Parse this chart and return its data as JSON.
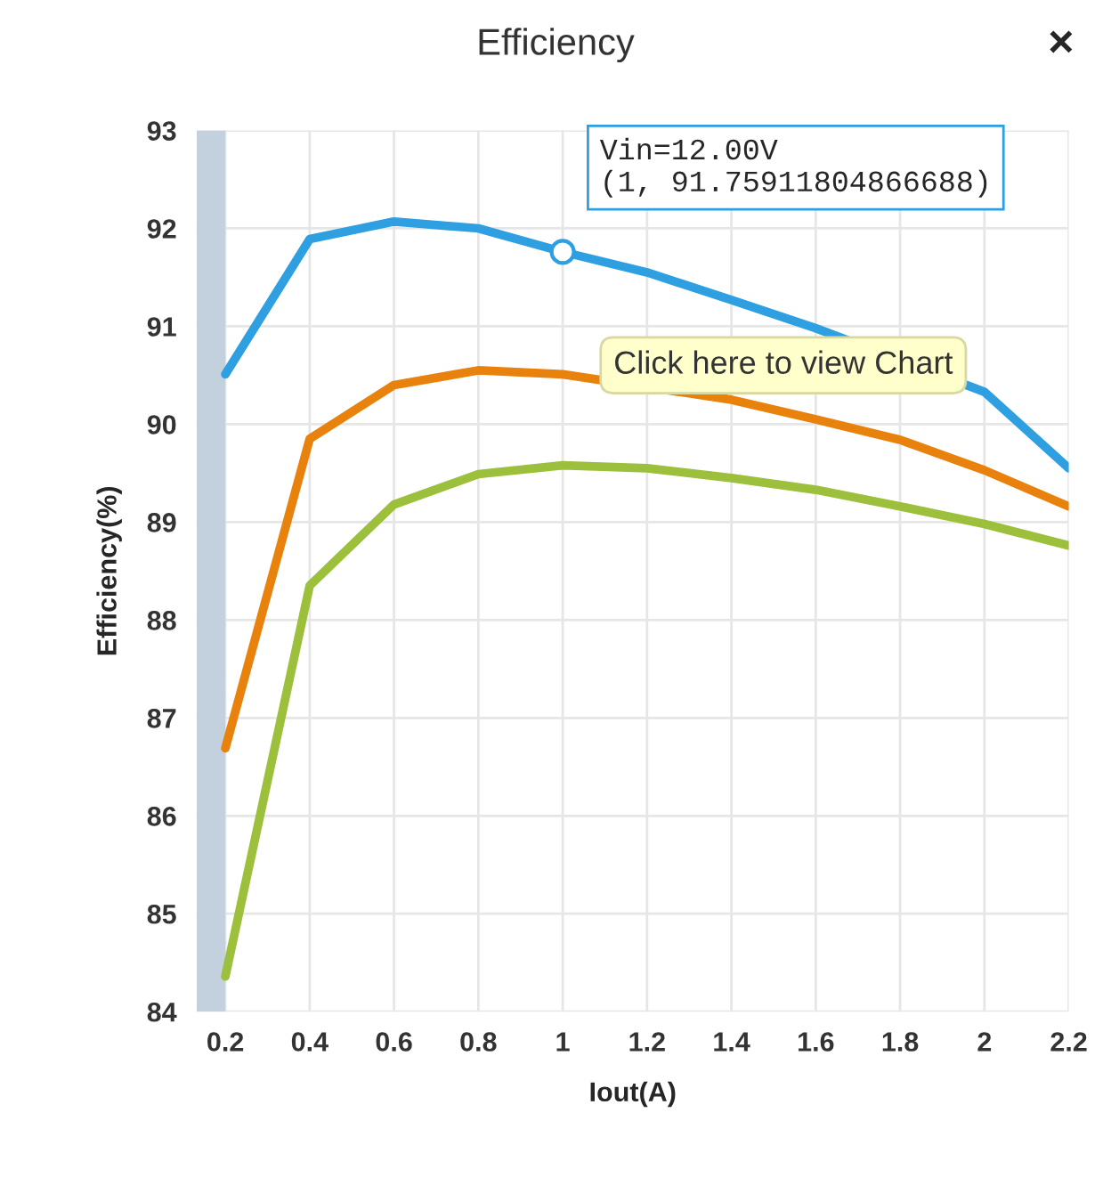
{
  "chart_data": {
    "type": "line",
    "title": "Efficiency",
    "xlabel": "Iout(A)",
    "ylabel": "Efficiency(%)",
    "x": [
      0.2,
      0.4,
      0.6,
      0.8,
      1.0,
      1.2,
      1.4,
      1.6,
      1.8,
      2.0,
      2.2
    ],
    "series": [
      {
        "color": "#2e9fe0",
        "values": [
          90.51,
          91.89,
          92.07,
          92.0,
          91.76,
          91.55,
          91.27,
          90.98,
          null,
          90.33,
          89.55
        ]
      },
      {
        "color": "#e8820c",
        "values": [
          86.69,
          89.85,
          90.4,
          90.55,
          90.51,
          null,
          90.25,
          90.05,
          89.84,
          89.53,
          89.16
        ]
      },
      {
        "color": "#9cbf3c",
        "values": [
          84.36,
          88.35,
          89.18,
          89.49,
          89.58,
          89.55,
          89.45,
          89.33,
          89.16,
          88.98,
          88.76
        ]
      }
    ],
    "xlim": [
      0.132,
      2.2
    ],
    "xticks": [
      0.2,
      0.4,
      0.6,
      0.8,
      1,
      1.2,
      1.4,
      1.6,
      1.8,
      2,
      2.2
    ],
    "ylim": [
      84,
      93
    ],
    "yticks": [
      84,
      85,
      86,
      87,
      88,
      89,
      90,
      91,
      92,
      93
    ],
    "bands": [
      {
        "axis": "x",
        "from": 0.132,
        "to": 0.2,
        "color": "#c3d0de"
      }
    ],
    "grid": true,
    "line_style": "solid",
    "marker": "none",
    "annotations": [
      {
        "text": "Vin=12.00V\n(1, 91.75911804866688)",
        "x": 1,
        "y": 91.76
      },
      "Click here to view Chart",
      "×"
    ]
  }
}
